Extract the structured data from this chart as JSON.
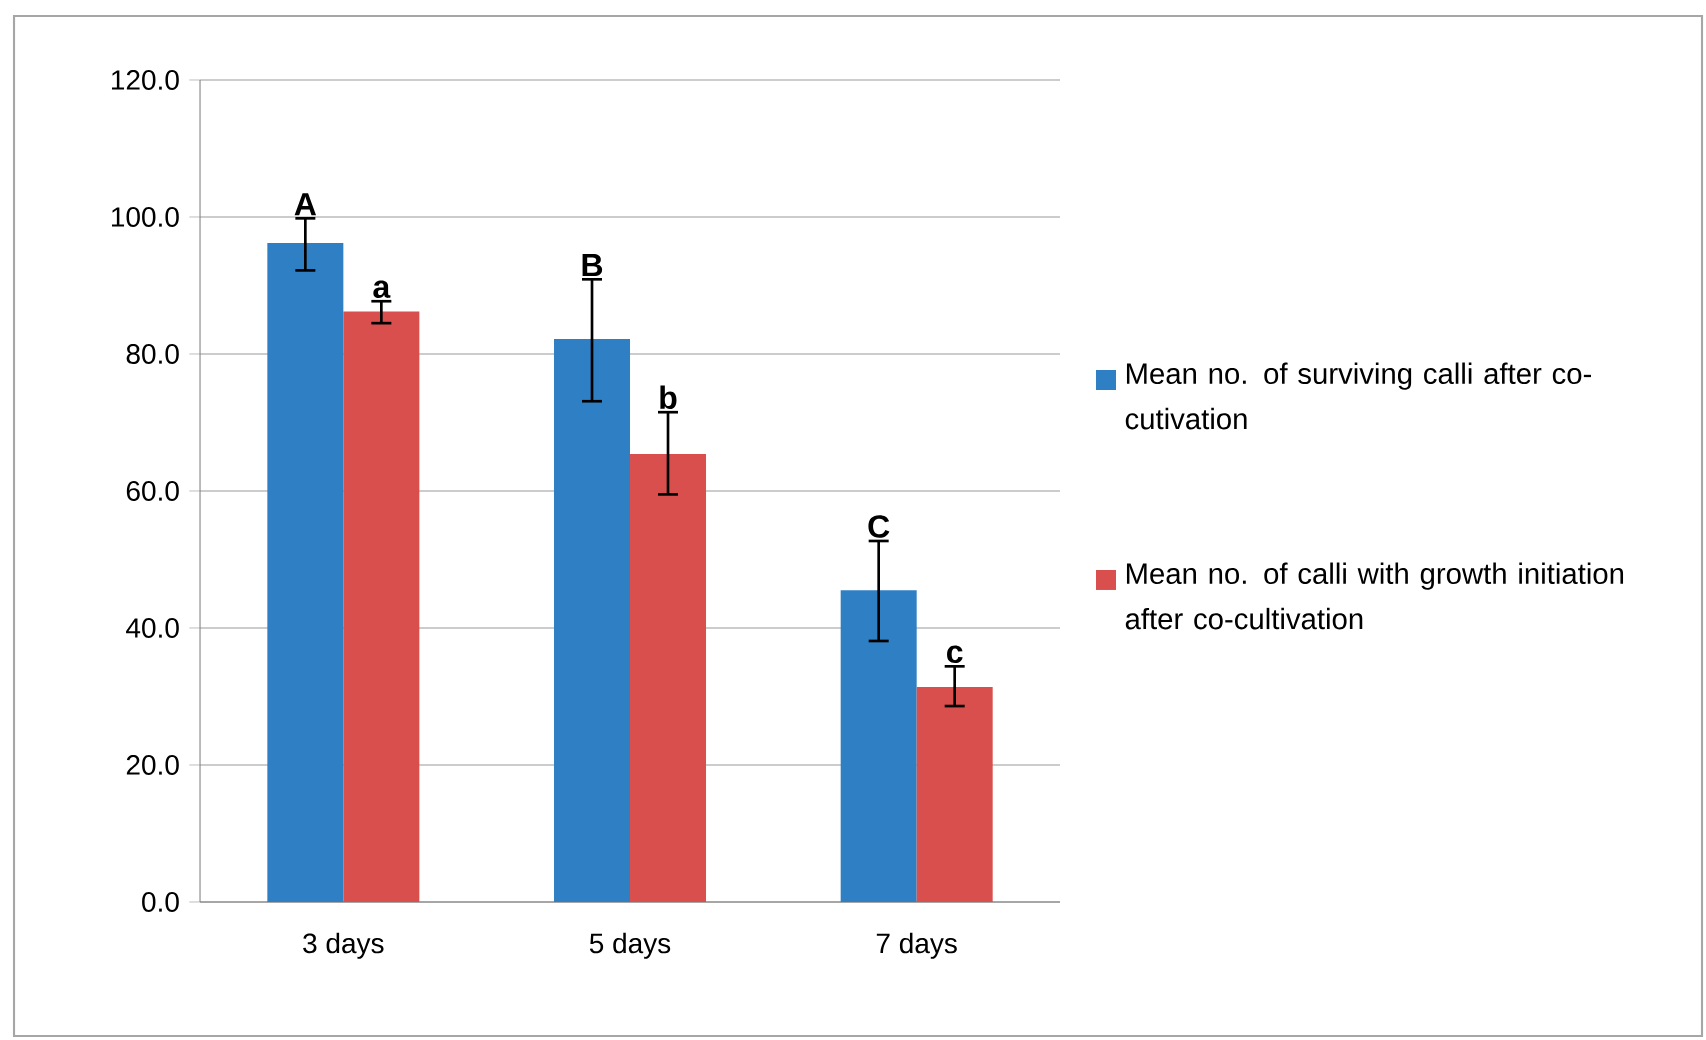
{
  "chart_data": {
    "type": "bar",
    "categories": [
      "3 days",
      "5 days",
      "7 days"
    ],
    "series": [
      {
        "name": "Mean no. of surviving calli after co-cutivation",
        "color": "#2e7fc4",
        "values": [
          96.2,
          82.2,
          45.5
        ],
        "errors": [
          [
            92.2,
            99.8
          ],
          [
            73.1,
            90.9
          ],
          [
            38.1,
            52.7
          ]
        ]
      },
      {
        "name": "Mean no. of calli with growth initiation  after co-cultivation",
        "color": "#d94f4d",
        "values": [
          86.2,
          65.4,
          31.4
        ],
        "errors": [
          [
            84.5,
            87.7
          ],
          [
            59.5,
            71.5
          ],
          [
            28.6,
            34.4
          ]
        ]
      }
    ],
    "ylim": [
      0,
      120
    ],
    "yticks": [
      {
        "value": 0,
        "label": "0.0"
      },
      {
        "value": 20,
        "label": "20.0"
      },
      {
        "value": 40,
        "label": "40.0"
      },
      {
        "value": 60,
        "label": "60.0"
      },
      {
        "value": 80,
        "label": "80.0"
      },
      {
        "value": 100,
        "label": "100.0"
      },
      {
        "value": 120,
        "label": "120.0"
      }
    ],
    "annotations": [
      "A",
      "a",
      "B",
      "b",
      "C",
      "c"
    ],
    "grid": "y",
    "legend": "right"
  }
}
